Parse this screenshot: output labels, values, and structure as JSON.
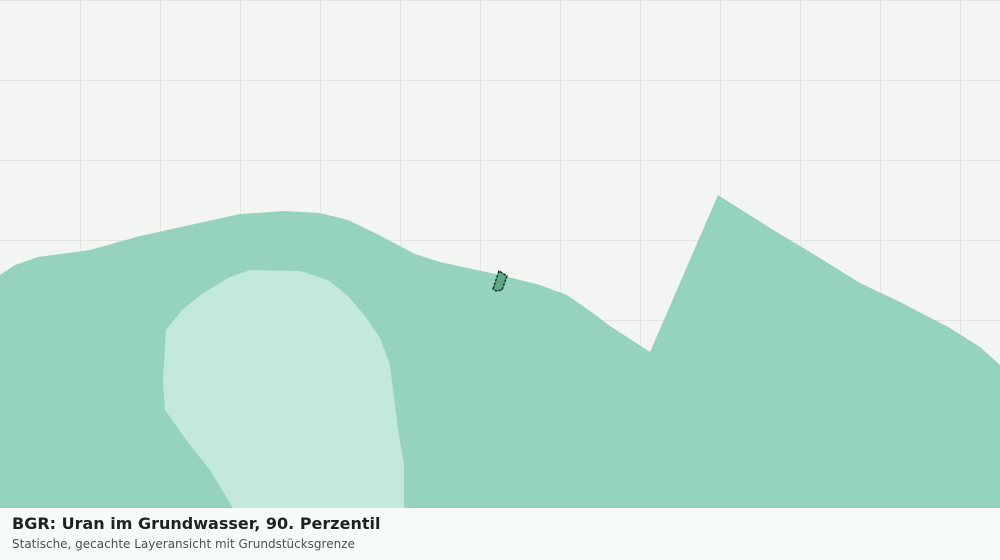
{
  "map": {
    "title": "BGR: Uran im Grundwasser, 90. Perzentil",
    "subtitle": "Statische, gecachte Layeransicht mit Grundstücksgrenze"
  }
}
